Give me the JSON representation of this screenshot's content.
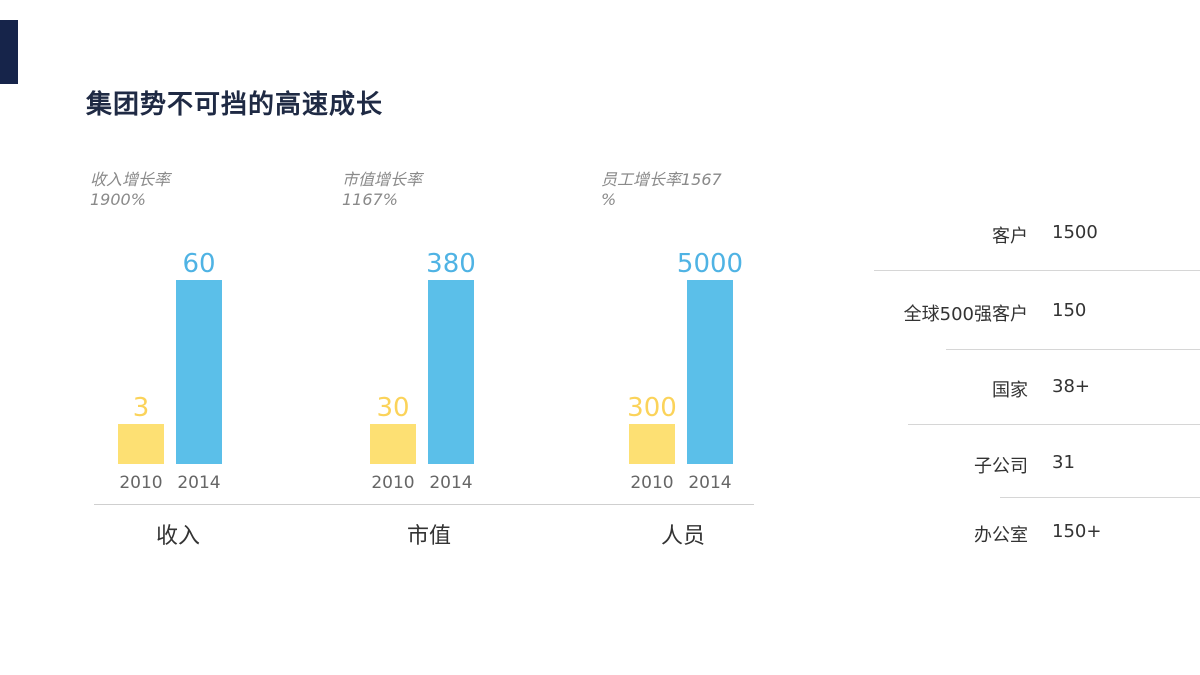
{
  "title": "集团势不可挡的高速成长",
  "colors": {
    "accent": "#16244a",
    "bar2010": "#fde073",
    "bar2014": "#5bbfe9",
    "label2010": "#fbd35a",
    "label2014": "#4fb3e4"
  },
  "chart_data": [
    {
      "type": "bar",
      "category": "收入",
      "growth_label": [
        "收入增长率",
        "1900%"
      ],
      "categories": [
        "2010",
        "2014"
      ],
      "values": [
        3,
        60
      ],
      "value_labels": [
        "3",
        "60"
      ]
    },
    {
      "type": "bar",
      "category": "市值",
      "growth_label": [
        "市值增长率",
        "1167%"
      ],
      "categories": [
        "2010",
        "2014"
      ],
      "values": [
        30,
        380
      ],
      "value_labels": [
        "30",
        "380"
      ]
    },
    {
      "type": "bar",
      "category": "人员",
      "growth_label": [
        "员工增长率1567",
        "%"
      ],
      "categories": [
        "2010",
        "2014"
      ],
      "values": [
        300,
        5000
      ],
      "value_labels": [
        "300",
        "5000"
      ]
    }
  ],
  "stats": [
    {
      "label": "客户",
      "value": "1500"
    },
    {
      "label": "全球500强客户",
      "value": "150"
    },
    {
      "label": "国家",
      "value": "38+"
    },
    {
      "label": "子公司",
      "value": "31"
    },
    {
      "label": "办公室",
      "value": "150+"
    }
  ]
}
